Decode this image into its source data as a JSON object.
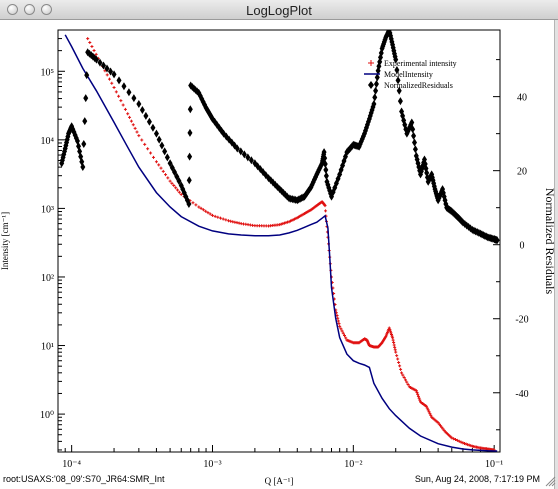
{
  "window": {
    "title": "LogLogPlot"
  },
  "footer": {
    "left": "root:USAXS:'08_09':S70_JR64:SMR_Int",
    "right": "Sun, Aug 24, 2008, 7:17:19 PM"
  },
  "chart_data": {
    "type": "scatter",
    "xlabel": "Q [A⁻¹]",
    "ylabel": "Intensity [cm⁻¹]",
    "y2label": "Normalized Residuals",
    "xscale": "log",
    "yscale": "log",
    "xlim": [
      8e-05,
      0.11
    ],
    "ylim": [
      0.28,
      400000
    ],
    "y2lim": [
      -56,
      58
    ],
    "x_ticks": [
      "10⁻⁴",
      "10⁻³",
      "10⁻²",
      "10⁻¹"
    ],
    "y_ticks": [
      "10⁰",
      "10¹",
      "10²",
      "10³",
      "10⁴",
      "10⁵"
    ],
    "y2_ticks": [
      "-40",
      "-20",
      "0",
      "20",
      "40"
    ],
    "legend_position": "top-right",
    "grid": false,
    "series": [
      {
        "name": "Experimental intensity",
        "color": "#e01010",
        "marker": "plus",
        "axis": "left",
        "x": [
          0.00013,
          0.00016,
          0.0002,
          0.00025,
          0.0003,
          0.0004,
          0.0005,
          0.0006,
          0.0008,
          0.001,
          0.0013,
          0.0016,
          0.002,
          0.0025,
          0.003,
          0.0035,
          0.004,
          0.0045,
          0.005,
          0.0055,
          0.006,
          0.0063,
          0.0066,
          0.007,
          0.0075,
          0.008,
          0.009,
          0.01,
          0.011,
          0.012,
          0.0125,
          0.013,
          0.014,
          0.015,
          0.016,
          0.017,
          0.018,
          0.019,
          0.02,
          0.022,
          0.025,
          0.028,
          0.03,
          0.033,
          0.036,
          0.04,
          0.045,
          0.05,
          0.06,
          0.07,
          0.08,
          0.09,
          0.1
        ],
        "y": [
          300000,
          135000,
          58000,
          24000,
          11500,
          4800,
          2500,
          1600,
          1050,
          790,
          660,
          600,
          560,
          555,
          580,
          640,
          730,
          840,
          950,
          1100,
          1250,
          1100,
          380,
          100,
          33,
          19,
          12,
          11,
          11,
          12.5,
          12,
          10,
          9.5,
          9.5,
          11,
          13.5,
          18,
          13,
          8,
          4,
          2.5,
          2.2,
          1.5,
          1.3,
          0.9,
          0.75,
          0.55,
          0.45,
          0.38,
          0.34,
          0.32,
          0.31,
          0.3
        ]
      },
      {
        "name": "ModelIntensity",
        "color": "#000080",
        "marker": "line",
        "axis": "left",
        "x": [
          9e-05,
          0.0001,
          0.00012,
          0.00015,
          0.0002,
          0.00025,
          0.0003,
          0.0004,
          0.0005,
          0.0006,
          0.0008,
          0.001,
          0.0013,
          0.0016,
          0.002,
          0.0025,
          0.003,
          0.0035,
          0.004,
          0.0045,
          0.005,
          0.0055,
          0.006,
          0.0063,
          0.0066,
          0.0068,
          0.007,
          0.0075,
          0.008,
          0.009,
          0.01,
          0.011,
          0.012,
          0.013,
          0.014,
          0.016,
          0.018,
          0.02,
          0.025,
          0.03,
          0.04,
          0.05,
          0.06,
          0.07,
          0.08,
          0.09,
          0.1,
          0.105
        ],
        "y": [
          340000,
          230000,
          110000,
          52000,
          18000,
          7800,
          4000,
          1700,
          1050,
          760,
          550,
          470,
          425,
          410,
          400,
          400,
          410,
          440,
          480,
          530,
          580,
          630,
          720,
          780,
          520,
          200,
          70,
          25,
          13,
          7.5,
          6,
          5.5,
          5.2,
          4.8,
          2.8,
          1.7,
          1.2,
          0.95,
          0.62,
          0.48,
          0.37,
          0.33,
          0.31,
          0.3,
          0.295,
          0.292,
          0.29,
          0.29
        ]
      },
      {
        "name": "NormalizedResiduals",
        "color": "#000000",
        "marker": "diamond",
        "axis": "right",
        "x": [
          8.5e-05,
          9e-05,
          9.5e-05,
          0.0001,
          0.00011,
          0.00012,
          0.00013,
          0.00015,
          0.0002,
          0.0003,
          0.0004,
          0.0005,
          0.0006,
          0.00068,
          0.0007,
          0.0008,
          0.0009,
          0.001,
          0.0012,
          0.0015,
          0.002,
          0.0025,
          0.003,
          0.0035,
          0.004,
          0.0045,
          0.005,
          0.0055,
          0.006,
          0.0062,
          0.0065,
          0.007,
          0.008,
          0.009,
          0.01,
          0.011,
          0.012,
          0.013,
          0.014,
          0.015,
          0.016,
          0.017,
          0.018,
          0.019,
          0.02,
          0.022,
          0.024,
          0.026,
          0.028,
          0.03,
          0.032,
          0.034,
          0.036,
          0.038,
          0.04,
          0.043,
          0.046,
          0.05,
          0.055,
          0.06,
          0.07,
          0.08,
          0.09,
          0.1,
          0.105
        ],
        "y": [
          22,
          26,
          30,
          32,
          28,
          21,
          52,
          50,
          46,
          38,
          30,
          22,
          16,
          11,
          43,
          41,
          37,
          34,
          30,
          26,
          22,
          18,
          15,
          12.5,
          12,
          13,
          15.5,
          19,
          22,
          25,
          17,
          13,
          19,
          25,
          27,
          26.5,
          30,
          34,
          38,
          47,
          53,
          56,
          58,
          54,
          50,
          36,
          30,
          33,
          24,
          19,
          23,
          17,
          19,
          15,
          12,
          15,
          10,
          9,
          7.5,
          6,
          4,
          3,
          2,
          1.5,
          1.2
        ]
      }
    ]
  }
}
